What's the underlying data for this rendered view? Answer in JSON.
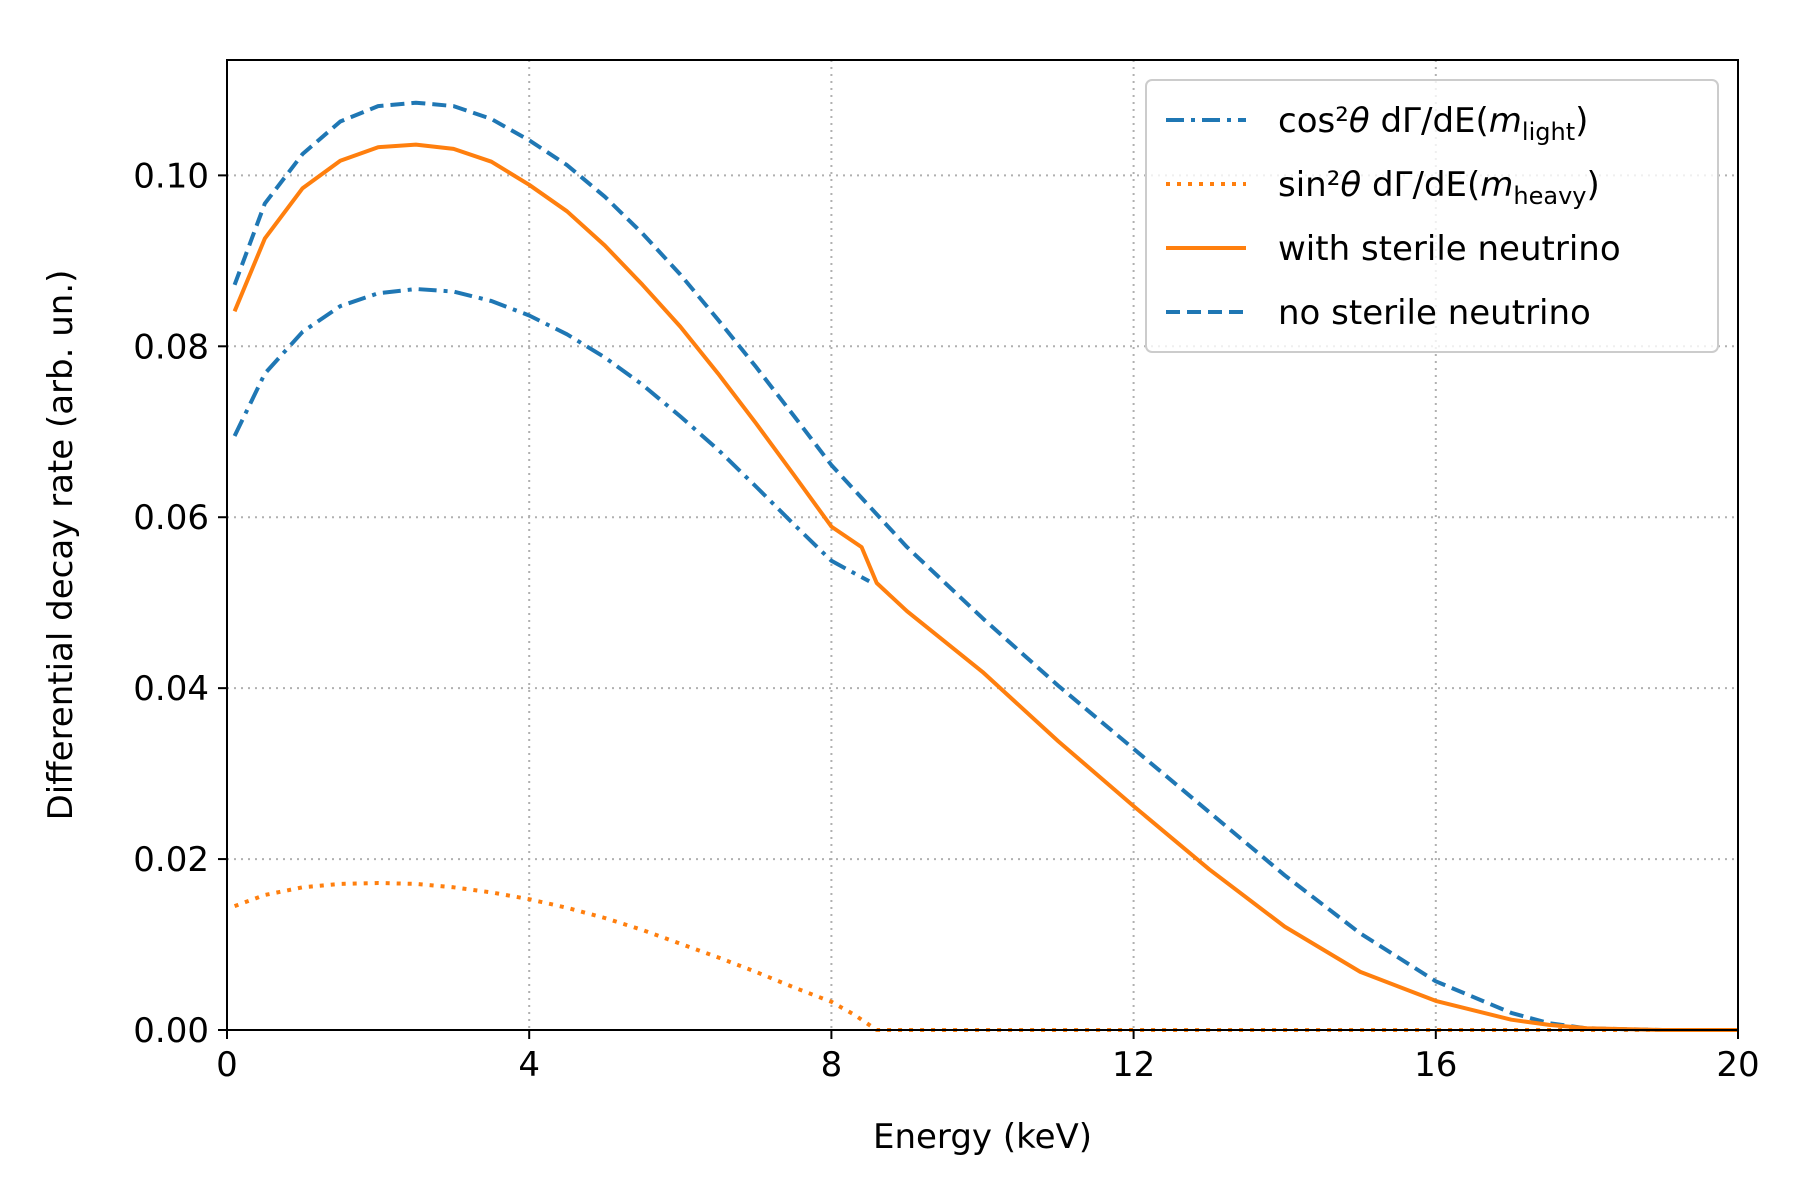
{
  "chart_data": {
    "type": "line",
    "title": "",
    "xlabel": "Energy (keV)",
    "ylabel": "Differential decay rate (arb. un.)",
    "xlim": [
      0,
      20
    ],
    "ylim": [
      0,
      0.1135
    ],
    "xticks": [
      0,
      4,
      8,
      12,
      16,
      20
    ],
    "xtick_labels": [
      "0",
      "4",
      "8",
      "12",
      "16",
      "20"
    ],
    "yticks": [
      0,
      0.02,
      0.04,
      0.06,
      0.08,
      0.1
    ],
    "ytick_labels": [
      "0.00",
      "0.02",
      "0.04",
      "0.06",
      "0.08",
      "0.10"
    ],
    "grid": true,
    "legend_position": "top-right",
    "legend": [
      {
        "series": "cos_light",
        "text_main": "cos²",
        "theta": "θ",
        "text_mid": " dΓ/dE(",
        "m": "m",
        "sub": "light",
        "close": ")"
      },
      {
        "series": "sin_heavy",
        "text_main": "sin²",
        "theta": "θ",
        "text_mid": " dΓ/dE(",
        "m": "m",
        "sub": "heavy",
        "close": ")"
      },
      {
        "series": "with_sterile",
        "label": "with sterile neutrino"
      },
      {
        "series": "no_sterile",
        "label": "no sterile neutrino"
      }
    ],
    "series": [
      {
        "key": "cos_light",
        "color": "#1f77b4",
        "style": "dashdot",
        "x": [
          0.1,
          0.5,
          1,
          1.5,
          2,
          2.5,
          3,
          3.5,
          4,
          4.5,
          5,
          5.5,
          6,
          6.5,
          7,
          7.5,
          8,
          8.5
        ],
        "y": [
          0.0695,
          0.0768,
          0.0817,
          0.0847,
          0.0862,
          0.0867,
          0.0864,
          0.0853,
          0.0836,
          0.0814,
          0.0787,
          0.0755,
          0.0718,
          0.0679,
          0.0636,
          0.0592,
          0.0549,
          0.0525
        ]
      },
      {
        "key": "sin_heavy",
        "color": "#ff7f0e",
        "style": "dotted",
        "x": [
          0.1,
          0.5,
          1,
          1.5,
          2,
          2.5,
          3,
          3.5,
          4,
          4.5,
          5,
          5.5,
          6,
          6.5,
          7,
          7.5,
          8,
          8.3,
          8.6,
          10,
          12,
          14,
          16,
          18,
          20
        ],
        "y": [
          0.0145,
          0.0158,
          0.0167,
          0.0171,
          0.0172,
          0.0171,
          0.0167,
          0.0161,
          0.0153,
          0.0143,
          0.0131,
          0.0117,
          0.0101,
          0.0085,
          0.0068,
          0.005,
          0.0033,
          0.0018,
          0.0,
          0.0,
          0.0,
          0.0,
          0.0,
          0.0,
          0.0
        ]
      },
      {
        "key": "with_sterile",
        "color": "#ff7f0e",
        "style": "solid",
        "x": [
          0.1,
          0.5,
          1,
          1.5,
          2,
          2.5,
          3,
          3.5,
          4,
          4.5,
          5,
          5.5,
          6,
          6.5,
          7,
          7.5,
          8,
          8.4,
          8.6,
          9,
          10,
          11,
          12,
          13,
          14,
          15,
          16,
          17,
          17.5,
          18,
          19,
          20
        ],
        "y": [
          0.0841,
          0.0926,
          0.0985,
          0.1017,
          0.1033,
          0.1036,
          0.1031,
          0.1016,
          0.0989,
          0.0958,
          0.0918,
          0.0872,
          0.0823,
          0.0768,
          0.071,
          0.065,
          0.0589,
          0.0565,
          0.0523,
          0.049,
          0.0419,
          0.0338,
          0.0262,
          0.0188,
          0.0121,
          0.0068,
          0.0034,
          0.0012,
          0.0006,
          0.0002,
          0.0,
          0.0
        ]
      },
      {
        "key": "no_sterile",
        "color": "#1f77b4",
        "style": "dashed",
        "x": [
          0.1,
          0.5,
          1,
          1.5,
          2,
          2.5,
          3,
          3.5,
          4,
          4.5,
          5,
          5.5,
          6,
          6.5,
          7,
          7.5,
          8,
          9,
          10,
          11,
          12,
          13,
          14,
          15,
          16,
          17,
          17.5,
          18,
          19,
          20
        ],
        "y": [
          0.0872,
          0.0967,
          0.1025,
          0.1063,
          0.1081,
          0.1085,
          0.1081,
          0.1066,
          0.1041,
          0.1012,
          0.0975,
          0.0932,
          0.0884,
          0.0831,
          0.0776,
          0.0719,
          0.0661,
          0.0565,
          0.0482,
          0.0403,
          0.0329,
          0.0255,
          0.0181,
          0.0113,
          0.0057,
          0.002,
          0.0008,
          0.0002,
          0.0,
          0.0
        ]
      }
    ]
  }
}
